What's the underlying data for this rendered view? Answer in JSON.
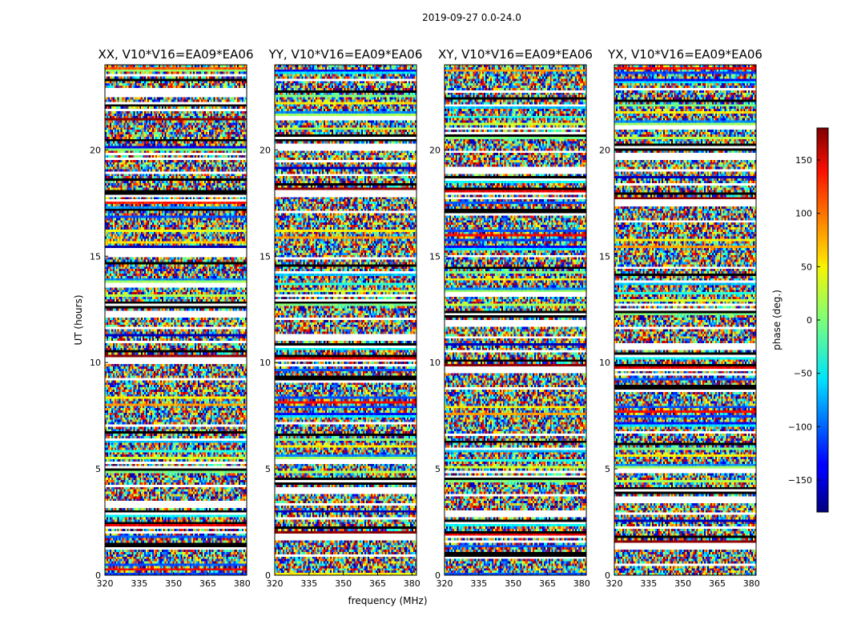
{
  "figure": {
    "suptitle": "2019-09-27 0.0-24.0",
    "ylabel": "UT (hours)",
    "xlabel": "frequency (MHz)",
    "colorbar_label": "phase (deg.)"
  },
  "chart_data": [
    {
      "type": "heatmap",
      "title": "XX, V10*V16=EA09*EA06",
      "xlabel": "frequency (MHz)",
      "ylabel": "UT (hours)",
      "xlim": [
        320,
        382
      ],
      "ylim": [
        0,
        24
      ],
      "xticks": [
        320,
        335,
        350,
        365,
        380
      ],
      "yticks": [
        0,
        5,
        10,
        15,
        20
      ],
      "value_range": [
        -180,
        180
      ],
      "colormap": "jet"
    },
    {
      "type": "heatmap",
      "title": "YY, V10*V16=EA09*EA06",
      "xlabel": "frequency (MHz)",
      "ylabel": "UT (hours)",
      "xlim": [
        320,
        382
      ],
      "ylim": [
        0,
        24
      ],
      "xticks": [
        320,
        335,
        350,
        365,
        380
      ],
      "yticks": [
        0,
        5,
        10,
        15,
        20
      ],
      "value_range": [
        -180,
        180
      ],
      "colormap": "jet"
    },
    {
      "type": "heatmap",
      "title": "XY, V10*V16=EA09*EA06",
      "xlabel": "frequency (MHz)",
      "ylabel": "UT (hours)",
      "xlim": [
        320,
        382
      ],
      "ylim": [
        0,
        24
      ],
      "xticks": [
        320,
        335,
        350,
        365,
        380
      ],
      "yticks": [
        0,
        5,
        10,
        15,
        20
      ],
      "value_range": [
        -180,
        180
      ],
      "colormap": "jet"
    },
    {
      "type": "heatmap",
      "title": "YX, V10*V16=EA09*EA06",
      "xlabel": "frequency (MHz)",
      "ylabel": "UT (hours)",
      "xlim": [
        320,
        382
      ],
      "ylim": [
        0,
        24
      ],
      "xticks": [
        320,
        335,
        350,
        365,
        380
      ],
      "yticks": [
        0,
        5,
        10,
        15,
        20
      ],
      "value_range": [
        -180,
        180
      ],
      "colormap": "jet"
    }
  ],
  "colorbar": {
    "range": [
      -180,
      180
    ],
    "ticks": [
      150,
      100,
      50,
      0,
      -50,
      -100,
      -150
    ],
    "tick_labels": [
      "150",
      "100",
      "50",
      "0",
      "−50",
      "−100",
      "−150"
    ],
    "colormap": "jet"
  }
}
